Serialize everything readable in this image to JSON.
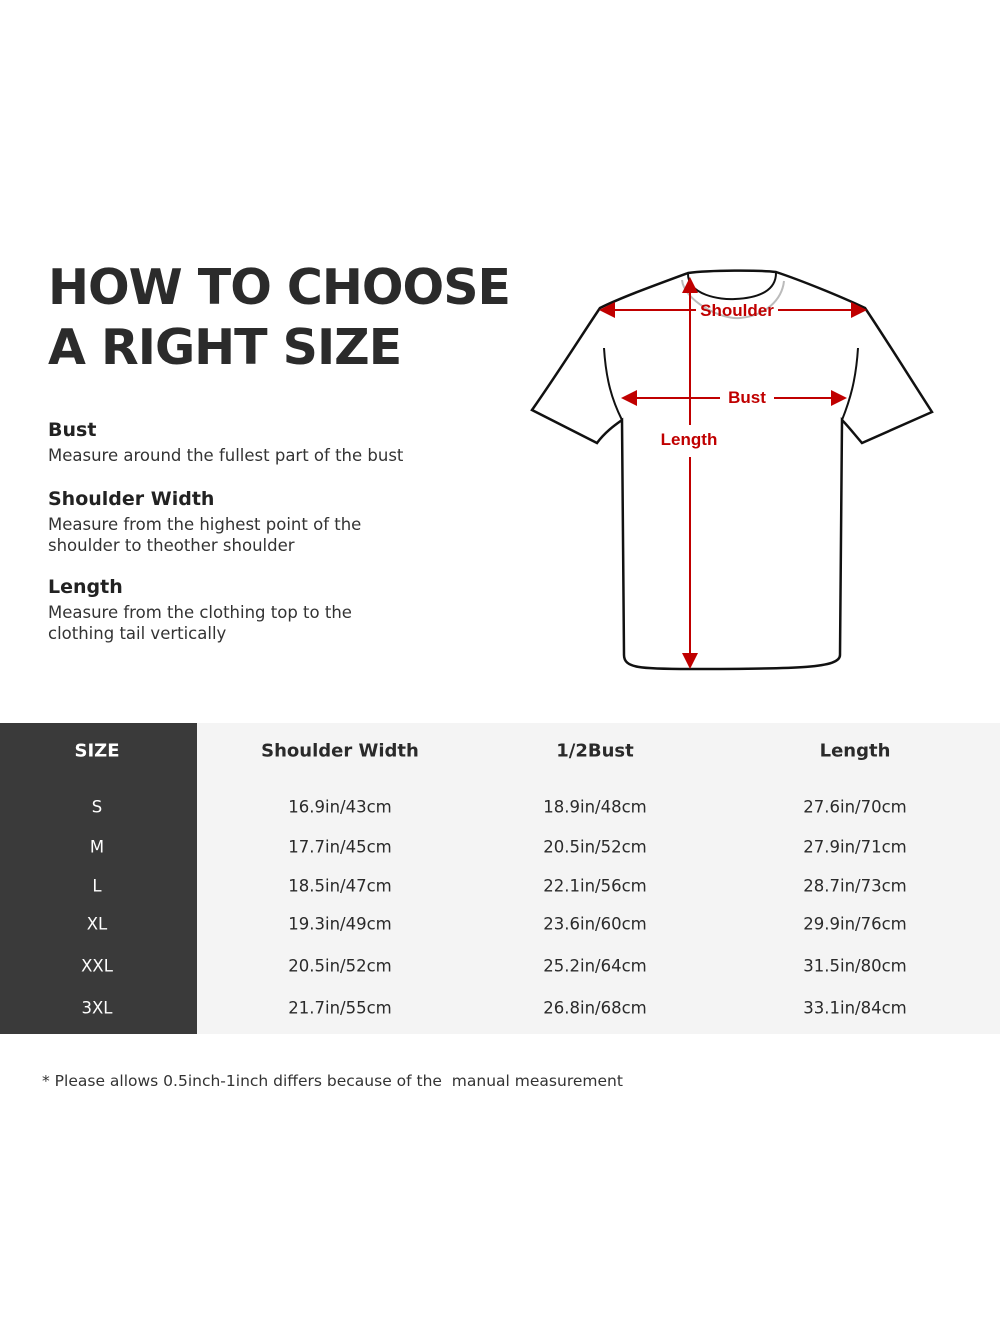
{
  "title": {
    "line1": "HOW TO CHOOSE",
    "line2": "A RIGHT SIZE"
  },
  "definitions": [
    {
      "term": "Bust",
      "text": "Measure around the fullest part of the bust"
    },
    {
      "term": "Shoulder Width",
      "text": "Measure from the highest point of the shoulder to theother shoulder"
    },
    {
      "term": "Length",
      "text": "Measure from the clothing top to the clothing tail vertically"
    }
  ],
  "diagram": {
    "shoulder_label": "Shoulder",
    "bust_label": "Bust",
    "length_label": "Length",
    "arrow_color": "#c00000"
  },
  "table": {
    "headers": [
      "SIZE",
      "Shoulder Width",
      "1/2Bust",
      "Length"
    ],
    "rows": [
      [
        "S",
        "16.9in/43cm",
        "18.9in/48cm",
        "27.6in/70cm"
      ],
      [
        "M",
        "17.7in/45cm",
        "20.5in/52cm",
        "27.9in/71cm"
      ],
      [
        "L",
        "18.5in/47cm",
        "22.1in/56cm",
        "28.7in/73cm"
      ],
      [
        "XL",
        "19.3in/49cm",
        "23.6in/60cm",
        "29.9in/76cm"
      ],
      [
        "XXL",
        "20.5in/52cm",
        "25.2in/64cm",
        "31.5in/80cm"
      ],
      [
        "3XL",
        "21.7in/55cm",
        "26.8in/68cm",
        "33.1in/84cm"
      ]
    ]
  },
  "footnote": "* Please allows 0.5inch-1inch differs because of the  manual measurement"
}
